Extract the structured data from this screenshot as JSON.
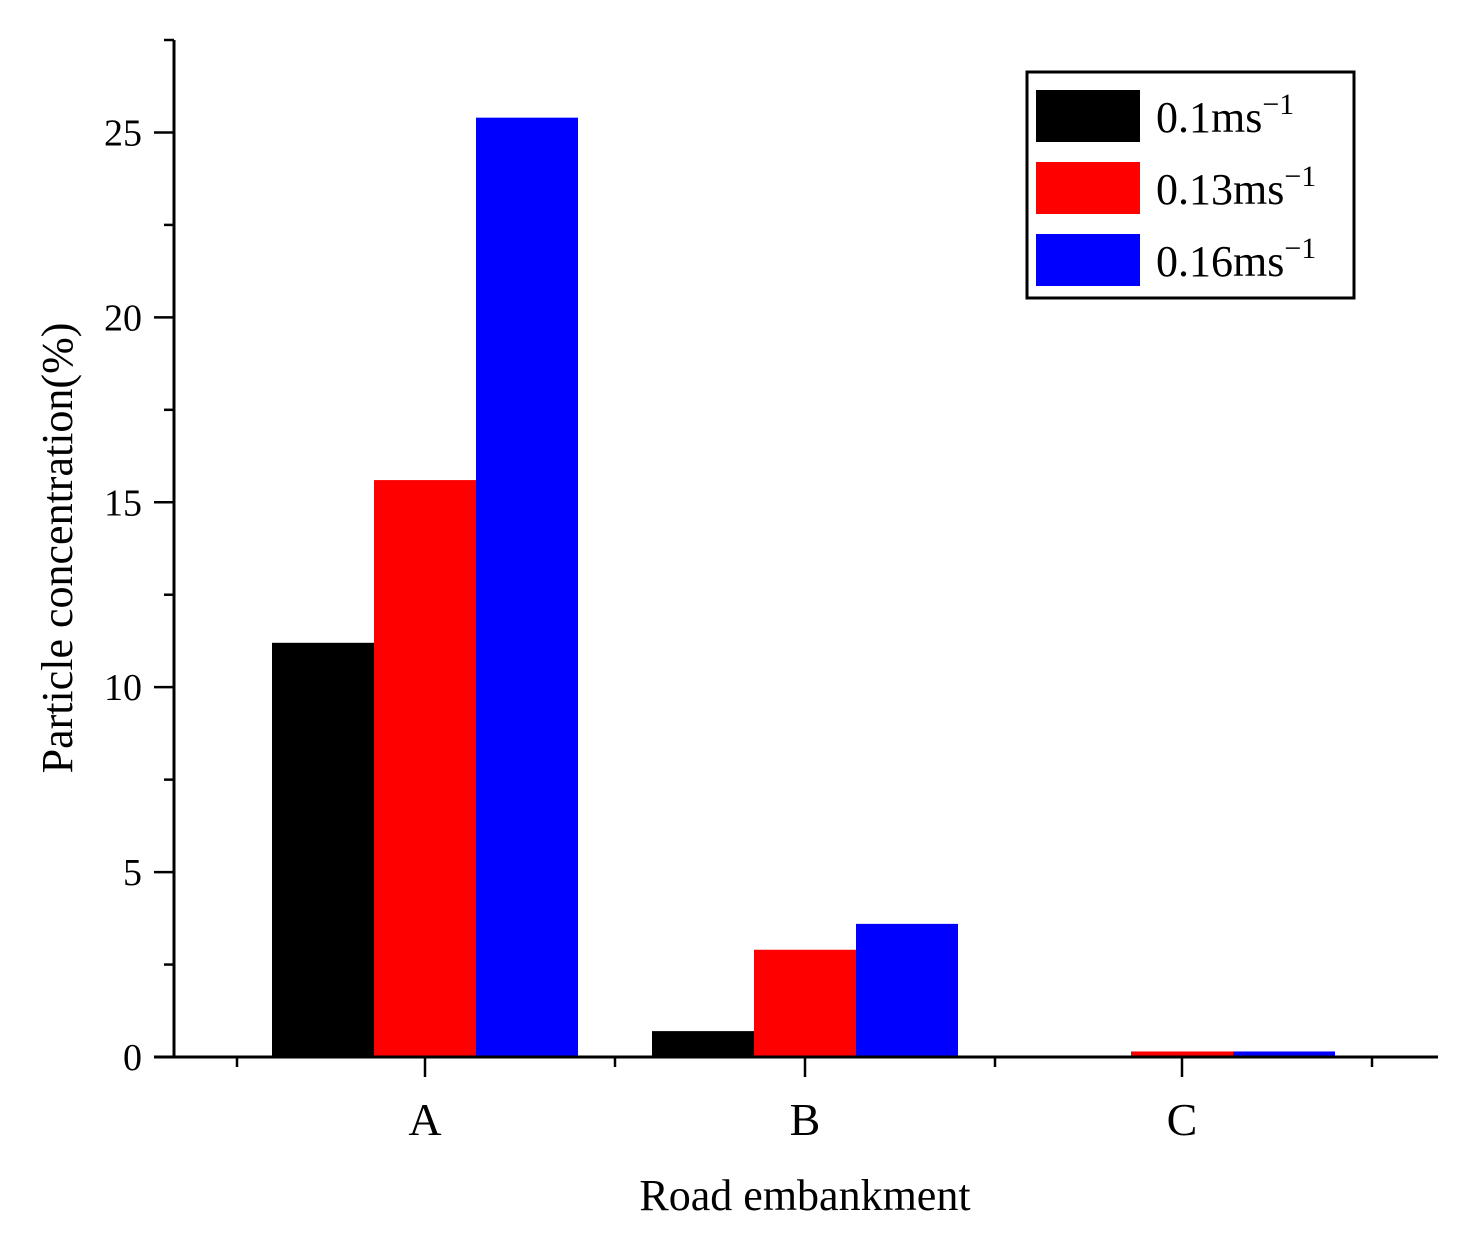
{
  "chart_data": {
    "type": "bar",
    "xlabel": "Road embankment",
    "ylabel": "Particle concentration(%)",
    "categories": [
      "A",
      "B",
      "C"
    ],
    "ylim": [
      0,
      27.5
    ],
    "yticks": [
      0,
      5,
      10,
      15,
      20,
      25
    ],
    "series": [
      {
        "name": "0.1ms",
        "superscript": "−1",
        "color": "#000000",
        "values": [
          11.2,
          0.7,
          0.0
        ]
      },
      {
        "name": "0.13ms",
        "superscript": "−1",
        "color": "#ff0000",
        "values": [
          15.6,
          2.9,
          0.15
        ]
      },
      {
        "name": "0.16ms",
        "superscript": "−1",
        "color": "#0000ff",
        "values": [
          25.4,
          3.6,
          0.15
        ]
      }
    ],
    "legend_position": "top-right",
    "grid": false
  }
}
